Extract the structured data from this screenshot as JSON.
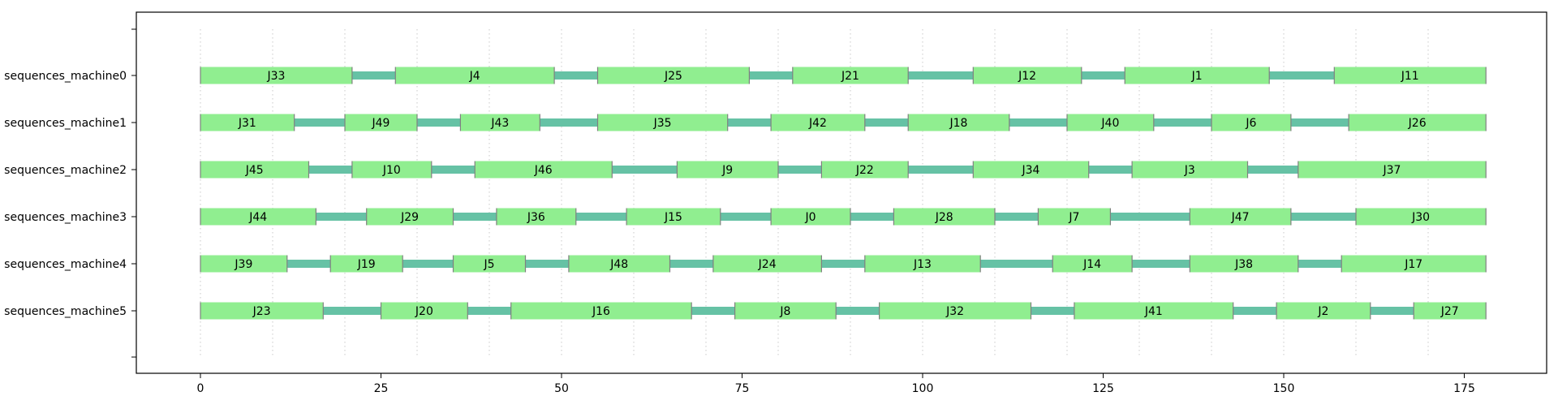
{
  "chart_data": {
    "type": "gantt",
    "title": "",
    "xlabel": "",
    "ylabel": "",
    "xlim": [
      -9,
      187
    ],
    "x_ticks": [
      0,
      25,
      50,
      75,
      100,
      125,
      150,
      175
    ],
    "x_ticklabels": [
      "0",
      "25",
      "50",
      "75",
      "100",
      "125",
      "150",
      "175"
    ],
    "grid_x": [
      0,
      10,
      20,
      30,
      40,
      50,
      60,
      70,
      80,
      90,
      100,
      110,
      120,
      130,
      140,
      150,
      160,
      170
    ],
    "rows": [
      {
        "name": "sequences_machine0",
        "tasks": [
          {
            "label": "J33",
            "start": 0,
            "end": 21
          },
          {
            "label": "J4",
            "start": 27,
            "end": 49
          },
          {
            "label": "J25",
            "start": 55,
            "end": 76
          },
          {
            "label": "J21",
            "start": 82,
            "end": 98
          },
          {
            "label": "J12",
            "start": 107,
            "end": 122
          },
          {
            "label": "J1",
            "start": 128,
            "end": 148
          },
          {
            "label": "J11",
            "start": 157,
            "end": 178
          }
        ]
      },
      {
        "name": "sequences_machine1",
        "tasks": [
          {
            "label": "J31",
            "start": 0,
            "end": 13
          },
          {
            "label": "J49",
            "start": 20,
            "end": 30
          },
          {
            "label": "J43",
            "start": 36,
            "end": 47
          },
          {
            "label": "J35",
            "start": 55,
            "end": 73
          },
          {
            "label": "J42",
            "start": 79,
            "end": 92
          },
          {
            "label": "J18",
            "start": 98,
            "end": 112
          },
          {
            "label": "J40",
            "start": 120,
            "end": 132
          },
          {
            "label": "J6",
            "start": 140,
            "end": 151
          },
          {
            "label": "J26",
            "start": 159,
            "end": 178
          }
        ]
      },
      {
        "name": "sequences_machine2",
        "tasks": [
          {
            "label": "J45",
            "start": 0,
            "end": 15
          },
          {
            "label": "J10",
            "start": 21,
            "end": 32
          },
          {
            "label": "J46",
            "start": 38,
            "end": 57
          },
          {
            "label": "J9",
            "start": 66,
            "end": 80
          },
          {
            "label": "J22",
            "start": 86,
            "end": 98
          },
          {
            "label": "J34",
            "start": 107,
            "end": 123
          },
          {
            "label": "J3",
            "start": 129,
            "end": 145
          },
          {
            "label": "J37",
            "start": 152,
            "end": 178
          }
        ]
      },
      {
        "name": "sequences_machine3",
        "tasks": [
          {
            "label": "J44",
            "start": 0,
            "end": 16
          },
          {
            "label": "J29",
            "start": 23,
            "end": 35
          },
          {
            "label": "J36",
            "start": 41,
            "end": 52
          },
          {
            "label": "J15",
            "start": 59,
            "end": 72
          },
          {
            "label": "J0",
            "start": 79,
            "end": 90
          },
          {
            "label": "J28",
            "start": 96,
            "end": 110
          },
          {
            "label": "J7",
            "start": 116,
            "end": 126
          },
          {
            "label": "J47",
            "start": 137,
            "end": 151
          },
          {
            "label": "J30",
            "start": 160,
            "end": 178
          }
        ]
      },
      {
        "name": "sequences_machine4",
        "tasks": [
          {
            "label": "J39",
            "start": 0,
            "end": 12
          },
          {
            "label": "J19",
            "start": 18,
            "end": 28
          },
          {
            "label": "J5",
            "start": 35,
            "end": 45
          },
          {
            "label": "J48",
            "start": 51,
            "end": 65
          },
          {
            "label": "J24",
            "start": 71,
            "end": 86
          },
          {
            "label": "J13",
            "start": 92,
            "end": 108
          },
          {
            "label": "J14",
            "start": 118,
            "end": 129
          },
          {
            "label": "J38",
            "start": 137,
            "end": 152
          },
          {
            "label": "J17",
            "start": 158,
            "end": 178
          }
        ]
      },
      {
        "name": "sequences_machine5",
        "tasks": [
          {
            "label": "J23",
            "start": 0,
            "end": 17
          },
          {
            "label": "J20",
            "start": 25,
            "end": 37
          },
          {
            "label": "J16",
            "start": 43,
            "end": 68
          },
          {
            "label": "J8",
            "start": 74,
            "end": 88
          },
          {
            "label": "J32",
            "start": 94,
            "end": 115
          },
          {
            "label": "J41",
            "start": 121,
            "end": 143
          },
          {
            "label": "J2",
            "start": 149,
            "end": 162
          },
          {
            "label": "J27",
            "start": 168,
            "end": 178
          }
        ]
      }
    ],
    "colors": {
      "task_fill": "#90ee90",
      "task_edge": "#808080",
      "connector": "#66c2a5",
      "grid": "#c8c8c8",
      "axis": "#000000",
      "text": "#000000"
    },
    "grid": true,
    "legend": "none"
  }
}
